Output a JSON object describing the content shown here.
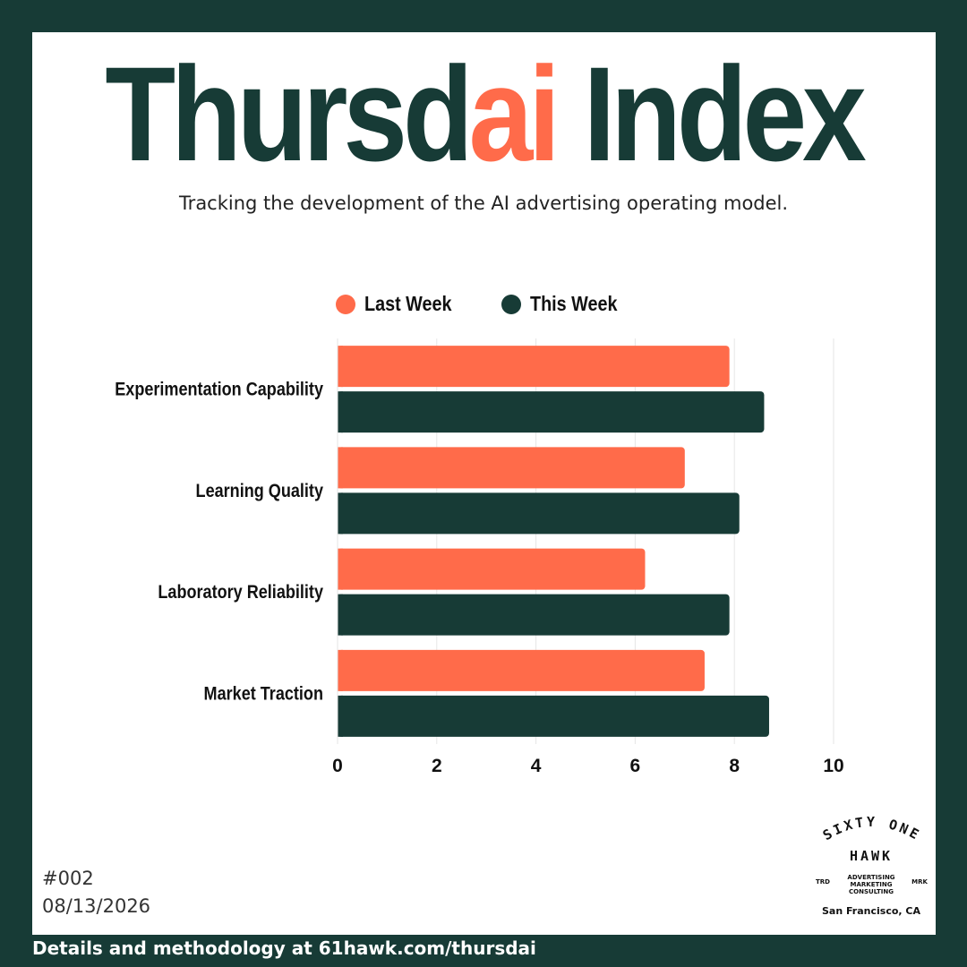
{
  "title": {
    "part1": "Thursd",
    "part2": "ai",
    "part3": " Index"
  },
  "subtitle": "Tracking the development of the AI advertising operating model.",
  "colors": {
    "background": "#173b36",
    "last_week": "#ff6b4a",
    "this_week": "#173b36",
    "accent": "#ff6b4a"
  },
  "legend": [
    {
      "label": "Last Week",
      "color": "#ff6b4a"
    },
    {
      "label": "This Week",
      "color": "#173b36"
    }
  ],
  "chart_data": {
    "type": "bar",
    "orientation": "horizontal",
    "categories": [
      "Experimentation Capability",
      "Learning Quality",
      "Laboratory Reliability",
      "Market Traction"
    ],
    "series": [
      {
        "name": "Last Week",
        "values": [
          7.9,
          7.0,
          6.2,
          7.4
        ]
      },
      {
        "name": "This Week",
        "values": [
          8.6,
          8.1,
          7.9,
          8.7
        ]
      }
    ],
    "xlim": [
      0,
      10
    ],
    "xticks": [
      0,
      2,
      4,
      6,
      8,
      10
    ],
    "grid": true,
    "legend_position": "top-center"
  },
  "issue": {
    "number": "#002",
    "date": "08/13/2026"
  },
  "footer": "Details and methodology at 61hawk.com/thursdai",
  "logo": {
    "line1": "SIXTY ONE",
    "line2": "HAWK",
    "tagline": [
      "ADVERTISING",
      "MARKETING",
      "CONSULTING"
    ],
    "left_mark": "TRD",
    "right_mark": "MRK",
    "location": "San Francisco, CA"
  }
}
